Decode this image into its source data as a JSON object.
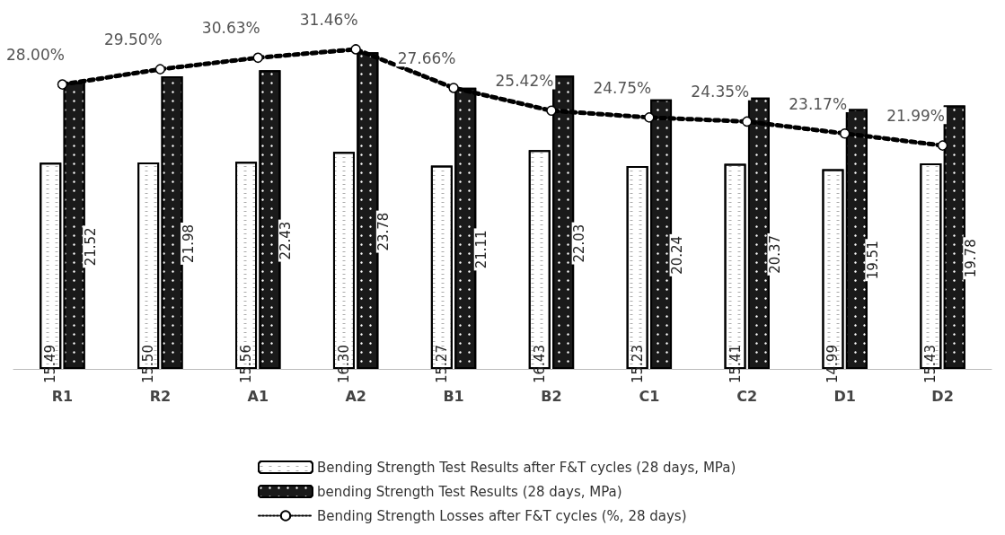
{
  "chart_data": {
    "type": "bar",
    "categories": [
      "R1",
      "R2",
      "A1",
      "A2",
      "B1",
      "B2",
      "C1",
      "C2",
      "D1",
      "D2"
    ],
    "series": [
      {
        "name": "Bending Strength Test Results after F&T cycles (28 days, MPa)",
        "color": "#ffffff",
        "values": [
          15.49,
          15.5,
          15.56,
          16.3,
          15.27,
          16.43,
          15.23,
          15.41,
          14.99,
          15.43
        ],
        "value_labels": [
          "15.49",
          "15.50",
          "15.56",
          "16.30",
          "15.27",
          "16.43",
          "15.23",
          "15.41",
          "14.99",
          "15.43"
        ]
      },
      {
        "name": "bending Strength Test Results (28 days, MPa)",
        "color": "#1a1a1a",
        "values": [
          21.52,
          21.98,
          22.43,
          23.78,
          21.11,
          22.03,
          20.24,
          20.37,
          19.51,
          19.78
        ],
        "value_labels": [
          "21.52",
          "21.98",
          "22.43",
          "23.78",
          "21.11",
          "22.03",
          "20.24",
          "20.37",
          "19.51",
          "19.78"
        ]
      },
      {
        "name": "Bending Strength Losses after F&T cycles (%, 28 days)",
        "type": "line",
        "axis": "y2",
        "color": "#000000",
        "values": [
          28.0,
          29.5,
          30.63,
          31.46,
          27.66,
          25.42,
          24.75,
          24.35,
          23.17,
          21.99
        ],
        "value_labels": [
          "28.00%",
          "29.50%",
          "30.63%",
          "31.46%",
          "27.66%",
          "25.42%",
          "24.75%",
          "24.35%",
          "23.17%",
          "21.99%"
        ]
      }
    ],
    "legend": "bottom",
    "marker": "circle",
    "line_style": "dotted"
  }
}
